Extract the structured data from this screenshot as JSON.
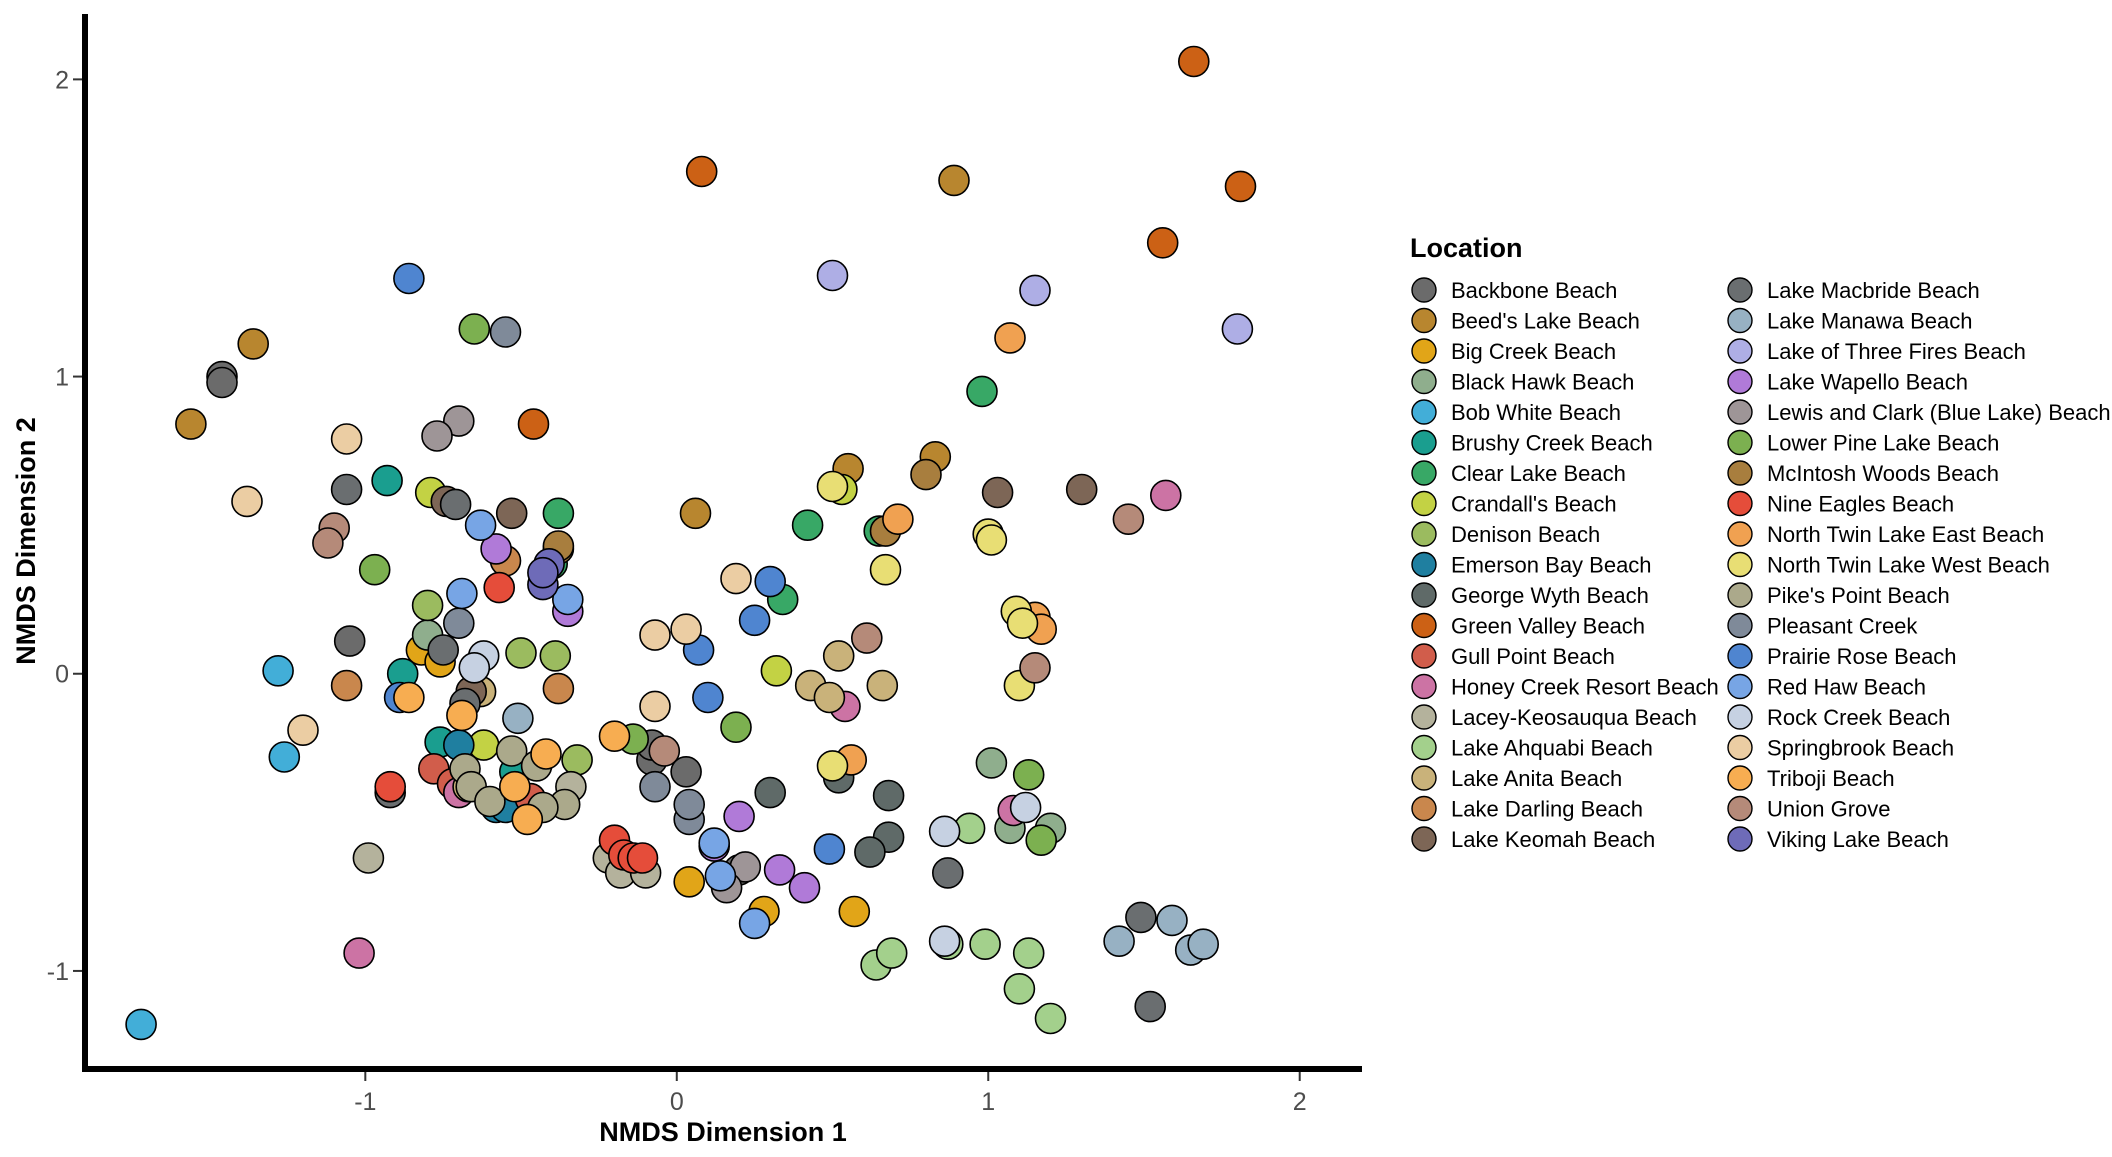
{
  "chart_data": {
    "type": "scatter",
    "xlabel": "NMDS Dimension 1",
    "ylabel": "NMDS Dimension 2",
    "xlim": [
      -1.9,
      2.2
    ],
    "ylim": [
      -1.33,
      2.22
    ],
    "xticks": [
      -1,
      0,
      1,
      2
    ],
    "yticks": [
      -1,
      0,
      1,
      2
    ],
    "xtick_labels": [
      "-1",
      "0",
      "1",
      "2"
    ],
    "ytick_labels": [
      "-1",
      "0",
      "1",
      "2"
    ],
    "grid": false,
    "legend": {
      "title": "Location",
      "position": "right",
      "columns": 2
    },
    "series": [
      {
        "name": "Backbone Beach",
        "color": "#6b6b6b",
        "points": [
          [
            -1.46,
            1.0
          ],
          [
            -1.46,
            0.98
          ],
          [
            -1.05,
            0.11
          ],
          [
            -0.08,
            -0.29
          ],
          [
            0.2,
            -0.66
          ],
          [
            0.03,
            -0.33
          ],
          [
            -0.08,
            -0.24
          ]
        ]
      },
      {
        "name": "Beed's Lake Beach",
        "color": "#b8862f",
        "points": [
          [
            -1.36,
            1.11
          ],
          [
            -1.56,
            0.84
          ],
          [
            0.06,
            0.54
          ],
          [
            0.89,
            1.66
          ],
          [
            0.55,
            0.69
          ],
          [
            0.83,
            0.73
          ]
        ]
      },
      {
        "name": "Big Creek Beach",
        "color": "#e1a518",
        "points": [
          [
            -0.82,
            0.08
          ],
          [
            -0.76,
            0.04
          ],
          [
            0.04,
            -0.7
          ],
          [
            0.28,
            -0.8
          ],
          [
            0.57,
            -0.8
          ]
        ]
      },
      {
        "name": "Black Hawk Beach",
        "color": "#8fae8d",
        "points": [
          [
            -0.8,
            0.13
          ],
          [
            1.01,
            -0.3
          ],
          [
            1.2,
            -0.52
          ],
          [
            1.07,
            -0.52
          ]
        ]
      },
      {
        "name": "Bob White Beach",
        "color": "#42aed8",
        "points": [
          [
            -1.72,
            -1.18
          ],
          [
            -1.28,
            0.01
          ],
          [
            -1.26,
            -0.28
          ]
        ]
      },
      {
        "name": "Brushy Creek Beach",
        "color": "#1a9e8f",
        "points": [
          [
            -0.93,
            0.65
          ],
          [
            -0.88,
            0.0
          ],
          [
            -0.76,
            -0.23
          ],
          [
            -0.52,
            -0.33
          ],
          [
            -0.5,
            -0.43
          ]
        ]
      },
      {
        "name": "Clear Lake Beach",
        "color": "#38a866",
        "points": [
          [
            -0.38,
            0.54
          ],
          [
            0.42,
            0.5
          ],
          [
            0.98,
            0.95
          ],
          [
            -0.4,
            0.37
          ],
          [
            0.65,
            0.48
          ],
          [
            0.34,
            0.25
          ]
        ]
      },
      {
        "name": "Crandall's Beach",
        "color": "#c3d244",
        "points": [
          [
            -0.79,
            0.61
          ],
          [
            0.32,
            0.01
          ],
          [
            0.53,
            0.62
          ],
          [
            -0.62,
            -0.24
          ]
        ]
      },
      {
        "name": "Denison Beach",
        "color": "#9bbb5f",
        "points": [
          [
            -0.8,
            0.23
          ],
          [
            -0.39,
            0.06
          ],
          [
            -0.5,
            0.07
          ],
          [
            -0.32,
            -0.29
          ]
        ]
      },
      {
        "name": "Emerson Bay Beach",
        "color": "#1f7fa0",
        "points": [
          [
            -0.7,
            -0.24
          ],
          [
            -0.58,
            -0.45
          ],
          [
            -0.55,
            -0.45
          ]
        ]
      },
      {
        "name": "George Wyth Beach",
        "color": "#5f6a68",
        "points": [
          [
            0.3,
            -0.4
          ],
          [
            0.52,
            -0.35
          ],
          [
            0.68,
            -0.41
          ],
          [
            0.68,
            -0.55
          ],
          [
            0.62,
            -0.6
          ]
        ]
      },
      {
        "name": "Green Valley Beach",
        "color": "#cc6115",
        "points": [
          [
            1.66,
            2.06
          ],
          [
            0.08,
            1.69
          ],
          [
            1.81,
            1.64
          ],
          [
            1.56,
            1.45
          ],
          [
            -0.46,
            0.84
          ]
        ]
      },
      {
        "name": "Gull Point Beach",
        "color": "#d15d4b",
        "points": [
          [
            -0.78,
            -0.32
          ],
          [
            -0.72,
            -0.37
          ],
          [
            -0.47,
            -0.42
          ]
        ]
      },
      {
        "name": "Honey Creek Resort Beach",
        "color": "#cc73a4",
        "points": [
          [
            -1.02,
            -0.94
          ],
          [
            1.57,
            0.6
          ],
          [
            0.54,
            -0.11
          ],
          [
            -0.7,
            -0.4
          ],
          [
            1.08,
            -0.46
          ]
        ]
      },
      {
        "name": "Lacey-Keosauqua Beach",
        "color": "#b4b29c",
        "points": [
          [
            -0.99,
            -0.62
          ],
          [
            -0.22,
            -0.62
          ],
          [
            -0.18,
            -0.67
          ],
          [
            -0.1,
            -0.67
          ],
          [
            -0.34,
            -0.38
          ]
        ]
      },
      {
        "name": "Lake Ahquabi Beach",
        "color": "#a3d08c",
        "points": [
          [
            0.64,
            -0.98
          ],
          [
            0.69,
            -0.94
          ],
          [
            0.87,
            -0.91
          ],
          [
            0.99,
            -0.91
          ],
          [
            1.1,
            -1.06
          ],
          [
            1.13,
            -0.94
          ],
          [
            1.2,
            -1.16
          ],
          [
            0.94,
            -0.52
          ]
        ]
      },
      {
        "name": "Lake Anita Beach",
        "color": "#c9b27a",
        "points": [
          [
            0.43,
            -0.04
          ],
          [
            0.49,
            -0.08
          ],
          [
            0.52,
            0.06
          ],
          [
            0.66,
            -0.04
          ],
          [
            -0.63,
            -0.06
          ],
          [
            -0.67,
            -0.38
          ]
        ]
      },
      {
        "name": "Lake Darling Beach",
        "color": "#c9874d",
        "points": [
          [
            -1.06,
            -0.04
          ],
          [
            -0.55,
            0.38
          ],
          [
            -0.38,
            -0.05
          ]
        ]
      },
      {
        "name": "Lake Keomah Beach",
        "color": "#7d6656",
        "points": [
          [
            -0.74,
            0.58
          ],
          [
            -0.53,
            0.54
          ],
          [
            1.3,
            0.62
          ],
          [
            1.03,
            0.61
          ],
          [
            -0.66,
            -0.06
          ]
        ]
      },
      {
        "name": "Lake Macbride Beach",
        "color": "#6a6e70",
        "points": [
          [
            -1.06,
            0.62
          ],
          [
            -0.71,
            0.57
          ],
          [
            0.87,
            -0.67
          ],
          [
            1.52,
            -1.12
          ],
          [
            1.49,
            -0.82
          ],
          [
            -0.92,
            -0.4
          ],
          [
            -0.68,
            -0.1
          ],
          [
            -0.75,
            0.08
          ]
        ]
      },
      {
        "name": "Lake Manawa Beach",
        "color": "#97b1c3",
        "points": [
          [
            -0.51,
            -0.15
          ],
          [
            1.42,
            -0.9
          ],
          [
            1.59,
            -0.83
          ],
          [
            1.65,
            -0.93
          ],
          [
            1.69,
            -0.91
          ]
        ]
      },
      {
        "name": "Lake of Three Fires Beach",
        "color": "#aeaee5",
        "points": [
          [
            0.5,
            1.34
          ],
          [
            1.15,
            1.29
          ],
          [
            1.8,
            1.16
          ]
        ]
      },
      {
        "name": "Lake Wapello Beach",
        "color": "#b07ad8",
        "points": [
          [
            0.2,
            -0.48
          ],
          [
            0.33,
            -0.66
          ],
          [
            0.41,
            -0.72
          ],
          [
            -0.58,
            0.42
          ],
          [
            -0.35,
            0.21
          ],
          [
            0.12,
            -0.58
          ]
        ]
      },
      {
        "name": "Lewis and Clark (Blue Lake) Beach",
        "color": "#9e9597",
        "points": [
          [
            -0.7,
            0.85
          ],
          [
            -0.77,
            0.8
          ],
          [
            0.22,
            -0.65
          ],
          [
            0.16,
            -0.72
          ]
        ]
      },
      {
        "name": "Lower Pine Lake Beach",
        "color": "#7cb050",
        "points": [
          [
            -0.65,
            1.16
          ],
          [
            -0.97,
            0.35
          ],
          [
            -0.14,
            -0.22
          ],
          [
            0.19,
            -0.18
          ],
          [
            1.13,
            -0.34
          ],
          [
            1.17,
            -0.56
          ]
        ]
      },
      {
        "name": "McIntosh Woods Beach",
        "color": "#a87e3e",
        "points": [
          [
            -0.38,
            0.42
          ],
          [
            0.8,
            0.67
          ],
          [
            0.67,
            0.48
          ],
          [
            -0.38,
            0.43
          ]
        ]
      },
      {
        "name": "Nine Eagles Beach",
        "color": "#e54d3a",
        "points": [
          [
            -0.57,
            0.29
          ],
          [
            -0.92,
            -0.38
          ],
          [
            -0.2,
            -0.56
          ],
          [
            -0.17,
            -0.61
          ],
          [
            -0.14,
            -0.62
          ],
          [
            -0.11,
            -0.62
          ]
        ]
      },
      {
        "name": "North Twin Lake East Beach",
        "color": "#f0a151",
        "points": [
          [
            1.07,
            1.13
          ],
          [
            0.71,
            0.52
          ],
          [
            1.15,
            0.19
          ],
          [
            1.17,
            0.15
          ],
          [
            0.56,
            -0.29
          ]
        ]
      },
      {
        "name": "North Twin Lake West Beach",
        "color": "#e8de74",
        "points": [
          [
            0.5,
            0.63
          ],
          [
            0.67,
            0.35
          ],
          [
            1.0,
            0.47
          ],
          [
            1.01,
            0.45
          ],
          [
            1.09,
            0.21
          ],
          [
            1.11,
            0.17
          ],
          [
            1.1,
            -0.04
          ],
          [
            0.5,
            -0.31
          ]
        ]
      },
      {
        "name": "Pike's Point Beach",
        "color": "#aba98b",
        "points": [
          [
            -0.68,
            -0.32
          ],
          [
            -0.53,
            -0.26
          ],
          [
            -0.45,
            -0.31
          ],
          [
            -0.36,
            -0.44
          ],
          [
            -0.43,
            -0.45
          ],
          [
            -0.66,
            -0.38
          ],
          [
            -0.6,
            -0.43
          ]
        ]
      },
      {
        "name": "Pleasant Creek",
        "color": "#7f8a99",
        "points": [
          [
            -0.55,
            1.15
          ],
          [
            -0.7,
            0.17
          ],
          [
            -0.07,
            -0.38
          ],
          [
            0.04,
            -0.49
          ],
          [
            0.04,
            -0.44
          ]
        ]
      },
      {
        "name": "Prairie Rose Beach",
        "color": "#4f85d0",
        "points": [
          [
            -0.86,
            1.33
          ],
          [
            0.07,
            0.08
          ],
          [
            0.1,
            -0.08
          ],
          [
            0.25,
            0.18
          ],
          [
            0.3,
            0.31
          ],
          [
            0.49,
            -0.59
          ],
          [
            -0.89,
            -0.08
          ]
        ]
      },
      {
        "name": "Red Haw Beach",
        "color": "#77a5e5",
        "points": [
          [
            -0.63,
            0.5
          ],
          [
            -0.69,
            0.27
          ],
          [
            -0.35,
            0.25
          ],
          [
            0.12,
            -0.57
          ],
          [
            0.14,
            -0.68
          ],
          [
            0.25,
            -0.84
          ]
        ]
      },
      {
        "name": "Rock Creek Beach",
        "color": "#c6d1e2",
        "points": [
          [
            0.86,
            -0.53
          ],
          [
            0.86,
            -0.9
          ],
          [
            1.12,
            -0.45
          ],
          [
            -0.62,
            0.06
          ],
          [
            -0.65,
            0.02
          ]
        ]
      },
      {
        "name": "Springbrook Beach",
        "color": "#ebcda3",
        "points": [
          [
            -1.38,
            0.58
          ],
          [
            -1.06,
            0.79
          ],
          [
            -1.2,
            -0.19
          ],
          [
            0.19,
            0.32
          ],
          [
            -0.07,
            0.13
          ],
          [
            0.03,
            0.15
          ],
          [
            -0.07,
            -0.11
          ]
        ]
      },
      {
        "name": "Triboji Beach",
        "color": "#f7ad51",
        "points": [
          [
            -0.69,
            -0.14
          ],
          [
            -0.52,
            -0.38
          ],
          [
            -0.48,
            -0.49
          ],
          [
            -0.42,
            -0.27
          ],
          [
            -0.86,
            -0.08
          ],
          [
            -0.2,
            -0.21
          ]
        ]
      },
      {
        "name": "Union Grove",
        "color": "#b58a79",
        "points": [
          [
            -1.1,
            0.49
          ],
          [
            -1.12,
            0.44
          ],
          [
            1.45,
            0.52
          ],
          [
            0.61,
            0.12
          ],
          [
            1.15,
            0.02
          ],
          [
            -0.04,
            -0.26
          ]
        ]
      },
      {
        "name": "Viking Lake Beach",
        "color": "#6e6bb8",
        "points": [
          [
            -0.41,
            0.37
          ],
          [
            -0.43,
            0.3
          ],
          [
            -0.43,
            0.34
          ]
        ]
      }
    ]
  }
}
